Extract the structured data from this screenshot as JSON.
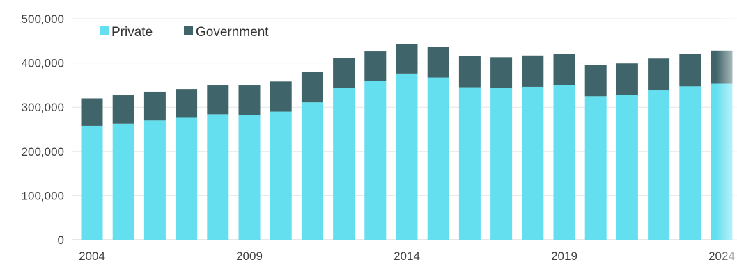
{
  "chart_data": {
    "type": "bar",
    "stacked": true,
    "categories": [
      "2004",
      "2005",
      "2006",
      "2007",
      "2008",
      "2009",
      "2010",
      "2011",
      "2012",
      "2013",
      "2014",
      "2015",
      "2016",
      "2017",
      "2018",
      "2019",
      "2020",
      "2021",
      "2022",
      "2023",
      "2024"
    ],
    "x_tick_labels": [
      "2004",
      "2009",
      "2014",
      "2019",
      "2024"
    ],
    "y_tick_labels": [
      "0",
      "100,000",
      "200,000",
      "300,000",
      "400,000",
      "500,000"
    ],
    "ylim": [
      0,
      500000
    ],
    "grid": true,
    "legend_position": "top-left",
    "series": [
      {
        "name": "Private",
        "color": "#63dfef",
        "values": [
          258000,
          263000,
          270000,
          276000,
          284000,
          283000,
          290000,
          311000,
          344000,
          359000,
          376000,
          367000,
          345000,
          343000,
          346000,
          350000,
          325000,
          328000,
          338000,
          347000,
          353000
        ]
      },
      {
        "name": "Government",
        "color": "#3f6469",
        "values": [
          62000,
          64000,
          65000,
          65000,
          65000,
          66000,
          68000,
          68000,
          67000,
          67000,
          67000,
          69000,
          71000,
          70000,
          71000,
          71000,
          70000,
          71000,
          72000,
          73000,
          75000
        ]
      }
    ]
  }
}
